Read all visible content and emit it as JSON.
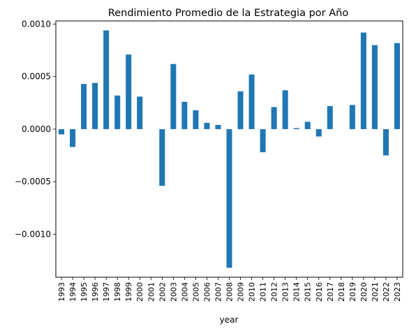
{
  "chart_data": {
    "type": "bar",
    "title": "Rendimiento Promedio de la Estrategia por Año",
    "xlabel": "year",
    "ylabel": "",
    "categories": [
      "1993",
      "1994",
      "1995",
      "1996",
      "1997",
      "1998",
      "1999",
      "2000",
      "2001",
      "2002",
      "2003",
      "2004",
      "2005",
      "2006",
      "2007",
      "2008",
      "2009",
      "2010",
      "2011",
      "2012",
      "2013",
      "2014",
      "2015",
      "2016",
      "2017",
      "2018",
      "2019",
      "2020",
      "2021",
      "2022",
      "2023"
    ],
    "values": [
      -5e-05,
      -0.00017,
      0.00043,
      0.00044,
      0.00094,
      0.00032,
      0.00071,
      0.00031,
      0.0,
      -0.00054,
      0.00062,
      0.00026,
      0.00018,
      6e-05,
      4e-05,
      -0.00132,
      0.00036,
      0.00052,
      -0.00022,
      0.00021,
      0.00037,
      1e-05,
      7e-05,
      -7e-05,
      0.00022,
      0.0,
      0.00023,
      0.00092,
      0.0008,
      -0.00025,
      0.00082
    ],
    "yticks": [
      "0.0010",
      "0.0005",
      "0.0000",
      "−0.0005",
      "−0.0010"
    ],
    "ylim": [
      -0.00141,
      0.00103
    ],
    "bar_color": "#1f77b4",
    "grid": false,
    "legend": "none"
  }
}
